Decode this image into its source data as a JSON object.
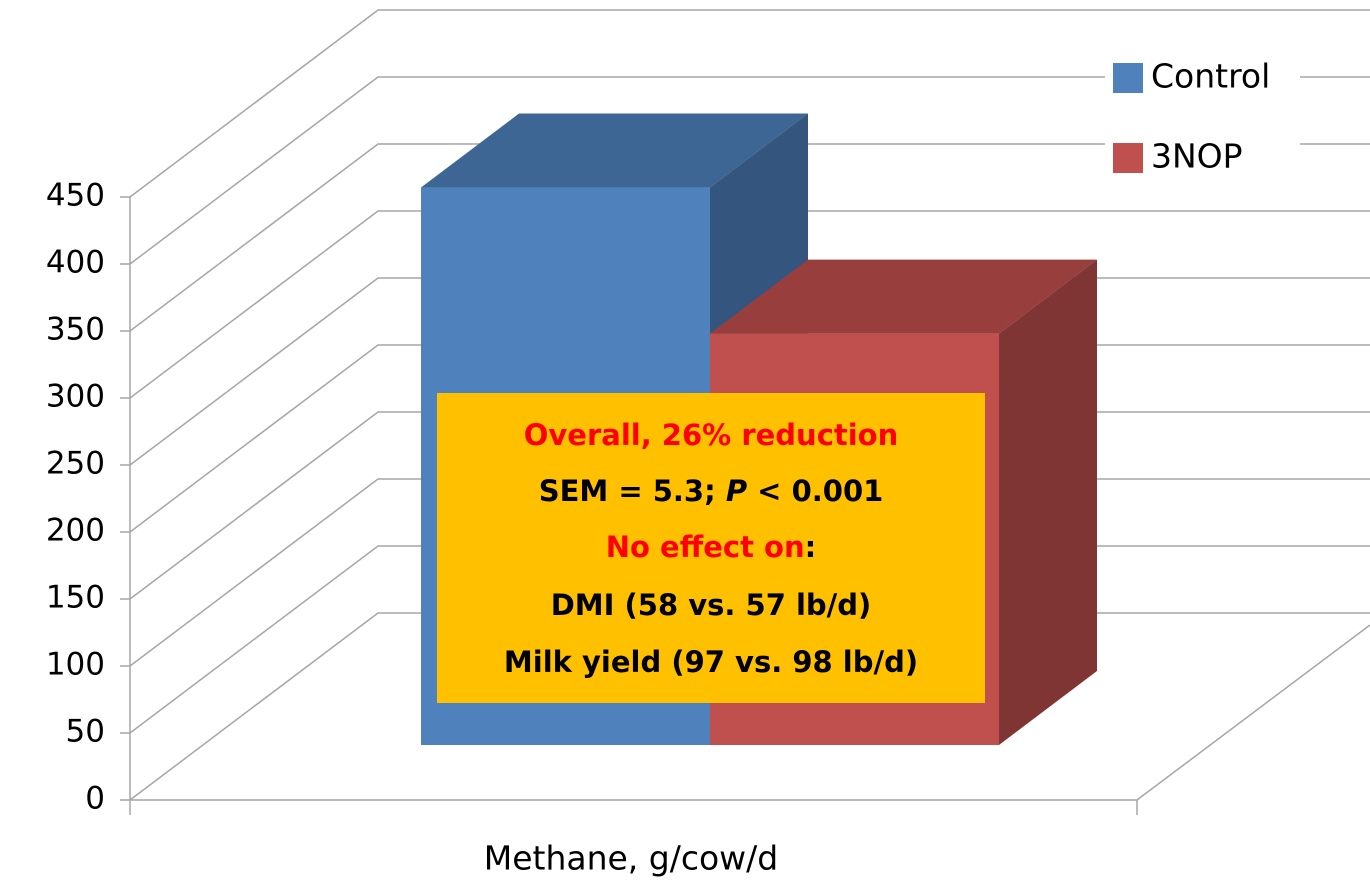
{
  "chart_data": {
    "type": "bar3d",
    "categories": [
      "Methane, g/cow/d"
    ],
    "series": [
      {
        "name": "Control",
        "color": "#4f81bd",
        "values": [
          416
        ]
      },
      {
        "name": "3NOP",
        "color": "#c0504d",
        "values": [
          307
        ]
      }
    ],
    "ylim": [
      0,
      450
    ],
    "yticks": [
      0,
      50,
      100,
      150,
      200,
      250,
      300,
      350,
      400,
      450
    ],
    "grid": true,
    "legend": "upper right",
    "annotation": [
      [
        "Overall, 26% reduction"
      ],
      [
        "SEM = 5.3; ",
        "P",
        " < 0.001"
      ],
      [
        "No effect on",
        ":"
      ],
      [
        "DMI (58 vs. 57 lb/d)"
      ],
      [
        "Milk yield (97 vs. 98 lb/d)"
      ]
    ]
  }
}
